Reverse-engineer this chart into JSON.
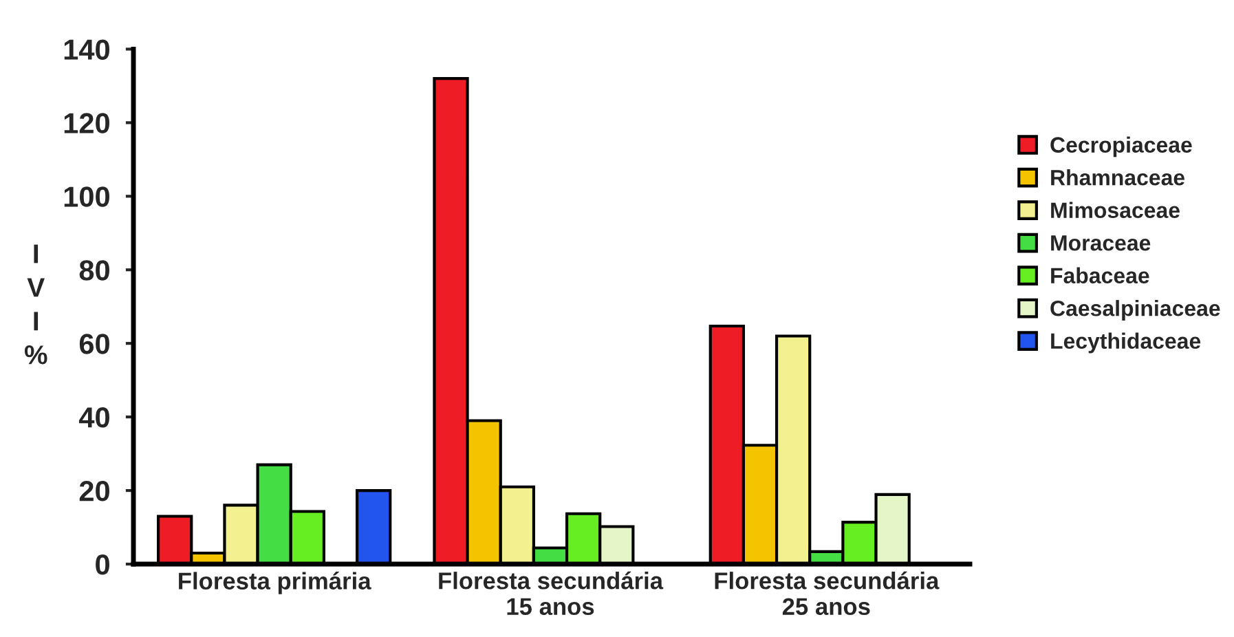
{
  "chart_data": {
    "type": "bar",
    "ylabel": "I\nV\nI\n%",
    "categories": [
      "Floresta primária",
      "Floresta secundária\n15 anos",
      "Floresta secundária\n25 anos"
    ],
    "series": [
      {
        "name": "Cecropiaceae",
        "color": "#ee1c25",
        "values": [
          13,
          132,
          64.7
        ]
      },
      {
        "name": "Rhamnaceae",
        "color": "#f5c400",
        "values": [
          3,
          39,
          32.3
        ]
      },
      {
        "name": "Mimosaceae",
        "color": "#f3f08f",
        "values": [
          16,
          21,
          62
        ]
      },
      {
        "name": "Moraceae",
        "color": "#44dd44",
        "values": [
          27,
          4.4,
          3.4
        ]
      },
      {
        "name": "Fabaceae",
        "color": "#66ee22",
        "values": [
          14.3,
          13.7,
          11.4
        ]
      },
      {
        "name": "Caesalpiniaceae",
        "color": "#e4f5c8",
        "values": [
          null,
          10.2,
          18.9
        ]
      },
      {
        "name": "Lecythidaceae",
        "color": "#2255ee",
        "values": [
          20,
          null,
          null
        ]
      }
    ],
    "ylim": [
      0,
      140
    ],
    "yticks": [
      0,
      20,
      40,
      60,
      80,
      100,
      120,
      140
    ],
    "grid": false,
    "legend": "right"
  }
}
